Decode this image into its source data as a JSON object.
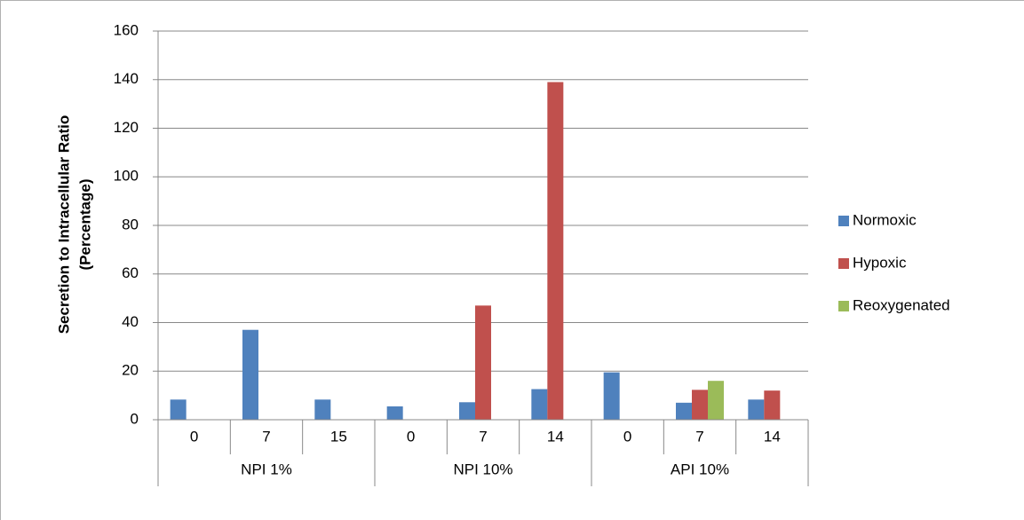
{
  "chart_data": {
    "type": "bar",
    "ylabel": [
      "Secretion to Intracellular Ratio",
      "(Percentage)"
    ],
    "groups": [
      {
        "name": "NPI 1%",
        "categories": [
          "0",
          "7",
          "15"
        ]
      },
      {
        "name": "NPI 10%",
        "categories": [
          "0",
          "7",
          "14"
        ]
      },
      {
        "name": "API 10%",
        "categories": [
          "0",
          "7",
          "14"
        ]
      }
    ],
    "series": [
      {
        "name": "Normoxic",
        "color": "#4f81bd",
        "values": [
          8.3,
          37,
          8.3,
          5.5,
          7.2,
          12.6,
          19.5,
          7,
          8.3
        ]
      },
      {
        "name": "Hypoxic",
        "color": "#c0504d",
        "values": [
          null,
          null,
          null,
          null,
          47,
          139,
          null,
          12.3,
          12
        ]
      },
      {
        "name": "Reoxygenated",
        "color": "#9bbb59",
        "values": [
          null,
          null,
          null,
          null,
          null,
          null,
          null,
          16,
          null
        ]
      }
    ],
    "ylim": [
      0,
      160
    ],
    "yticks": [
      0,
      20,
      40,
      60,
      80,
      100,
      120,
      140,
      160
    ],
    "grid": true,
    "legend": "right"
  }
}
